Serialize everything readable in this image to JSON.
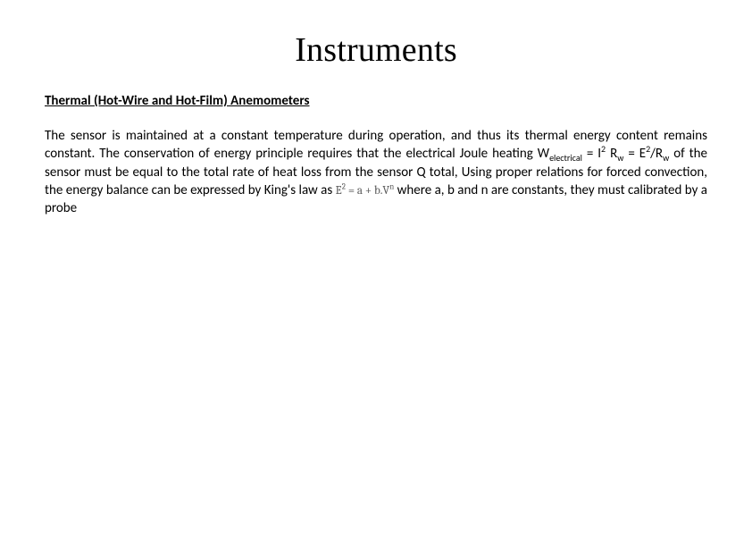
{
  "title": "Instruments",
  "subtitle": "Thermal (Hot-Wire and Hot-Film) Anemometers",
  "body": {
    "p1a": "The sensor is maintained at a constant temperature during operation, and thus its thermal energy content remains constant. The conservation of energy principle requires that the electrical Joule heating W",
    "p1_sub1": "electrical",
    "p1b": " = I",
    "p1_sup1": "2",
    "p1c": " R",
    "p1_sub2": "w",
    "p1d": " = E",
    "p1_sup2": "2",
    "p1e": "/R",
    "p1_sub3": "w",
    "p1f": " of the sensor must be equal to the total rate of heat loss from the sensor Q total, Using proper relations for forced convection, the energy balance can be expressed by King's law as  ",
    "formula_E": "E",
    "formula_sup": "2",
    "formula_eq": " = a + b.V",
    "formula_n": "n",
    "p1g": " where a, b and n are constants, they must calibrated by a probe"
  },
  "colors": {
    "text": "#000000",
    "formula": "#595959",
    "background": "#ffffff"
  },
  "fonts": {
    "title_family": "Times New Roman",
    "title_size_pt": 28,
    "body_family": "Calibri",
    "body_size_pt": 11,
    "subtitle_weight": 700
  }
}
